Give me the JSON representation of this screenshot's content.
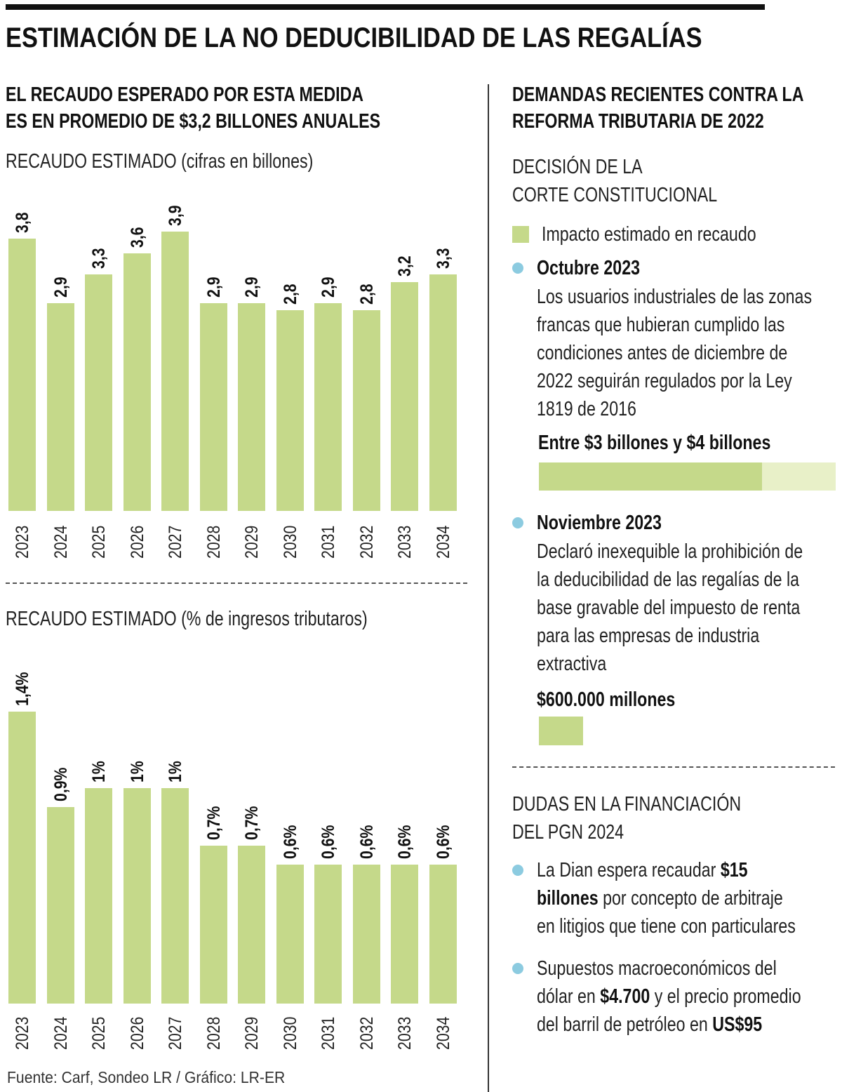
{
  "title": "ESTIMACIÓN DE LA NO DEDUCIBILIDAD DE LAS REGALÍAS",
  "left": {
    "heading_lines": [
      "EL RECAUDO ESPERADO POR ESTA MEDIDA",
      "ES EN PROMEDIO DE $3,2 BILLONES ANUALES"
    ]
  },
  "chart_data": [
    {
      "type": "bar",
      "title": "RECAUDO ESTIMADO (cifras en billones)",
      "categories": [
        "2023",
        "2024",
        "2025",
        "2026",
        "2027",
        "2028",
        "2029",
        "2030",
        "2031",
        "2032",
        "2033",
        "2034"
      ],
      "values": [
        3.8,
        2.9,
        3.3,
        3.6,
        3.9,
        2.9,
        2.9,
        2.8,
        2.9,
        2.8,
        3.2,
        3.3
      ],
      "value_labels": [
        "3,8",
        "2,9",
        "3,3",
        "3,6",
        "3,9",
        "2,9",
        "2,9",
        "2,8",
        "2,9",
        "2,8",
        "3,2",
        "3,3"
      ],
      "color": "#c5d98a",
      "grid": false
    },
    {
      "type": "bar",
      "title": "RECAUDO ESTIMADO (% de ingresos tributaros)",
      "categories": [
        "2023",
        "2024",
        "2025",
        "2026",
        "2027",
        "2028",
        "2029",
        "2030",
        "2031",
        "2032",
        "2033",
        "2034"
      ],
      "values": [
        1.4,
        0.9,
        1,
        1,
        1,
        0.7,
        0.7,
        0.6,
        0.6,
        0.6,
        0.6,
        0.6
      ],
      "value_labels": [
        "1,4%",
        "0,9%",
        "1%",
        "1%",
        "1%",
        "0,7%",
        "0,7%",
        "0,6%",
        "0,6%",
        "0,6%",
        "0,6%",
        "0,6%"
      ],
      "color": "#c5d98a",
      "grid": false
    }
  ],
  "right": {
    "heading_lines": [
      "DEMANDAS RECIENTES CONTRA LA",
      "REFORMA TRIBUTARIA DE 2022"
    ],
    "section1_lines": [
      "DECISIÓN DE LA",
      "CORTE CONSTITUCIONAL"
    ],
    "legend": "Impacto estimado en recaudo",
    "items": [
      {
        "date": "Octubre 2023",
        "lines": [
          "Los usuarios industriales de las zonas",
          "francas que hubieran cumplido las",
          "condiciones antes de diciembre de",
          "2022 seguirán regulados por la Ley",
          "1819 de 2016"
        ],
        "impact": "Entre $3 billones y $4 billones",
        "impact_min": 3,
        "impact_max": 4
      },
      {
        "date": "Noviembre 2023",
        "lines": [
          "Declaró inexequible la prohibición de",
          "la deducibilidad de las regalías de la",
          "base gravable del impuesto de renta",
          "para las empresas de industria",
          "extractiva"
        ],
        "impact": "$600.000 millones",
        "impact_value": 0.6
      }
    ],
    "section2_lines": [
      "DUDAS EN LA FINANCIACIÓN",
      "DEL PGN 2024"
    ],
    "bullets": [
      {
        "parts": [
          "La Dian espera recaudar ",
          "$15",
          "billones",
          " por concepto de arbitraje",
          "en litigios que tiene con particulares"
        ]
      },
      {
        "parts": [
          "Supuestos macroeconómicos del",
          "dólar en ",
          "$4.700",
          " y el precio promedio",
          "del barril de petróleo en ",
          "US$95"
        ]
      }
    ],
    "accent_dot": "#8ccbe0"
  },
  "source": "Fuente: Carf, Sondeo LR / Gráfico: LR-ER"
}
